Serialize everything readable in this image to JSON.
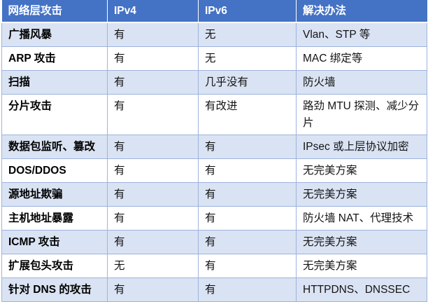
{
  "table": {
    "columns": [
      {
        "key": "attack",
        "label": "网络层攻击"
      },
      {
        "key": "ipv4",
        "label": "IPv4"
      },
      {
        "key": "ipv6",
        "label": "IPv6"
      },
      {
        "key": "solution",
        "label": "解决办法"
      }
    ],
    "rows": [
      {
        "attack": "广播风暴",
        "ipv4": "有",
        "ipv6": "无",
        "solution": "Vlan、STP 等"
      },
      {
        "attack": "ARP 攻击",
        "ipv4": "有",
        "ipv6": "无",
        "solution": "MAC 绑定等"
      },
      {
        "attack": "扫描",
        "ipv4": "有",
        "ipv6": "几乎没有",
        "solution": "防火墙"
      },
      {
        "attack": "分片攻击",
        "ipv4": "有",
        "ipv6": "有改进",
        "solution": "路劲 MTU 探测、减少分片"
      },
      {
        "attack": "数据包监听、篡改",
        "ipv4": "有",
        "ipv6": "有",
        "solution": "IPsec 或上层协议加密"
      },
      {
        "attack": "DOS/DDOS",
        "ipv4": "有",
        "ipv6": "有",
        "solution": "无完美方案"
      },
      {
        "attack": "源地址欺骗",
        "ipv4": "有",
        "ipv6": "有",
        "solution": "无完美方案"
      },
      {
        "attack": "主机地址暴露",
        "ipv4": "有",
        "ipv6": "有",
        "solution": "防火墙 NAT、代理技术"
      },
      {
        "attack": "ICMP 攻击",
        "ipv4": "有",
        "ipv6": "有",
        "solution": "无完美方案"
      },
      {
        "attack": "扩展包头攻击",
        "ipv4": "无",
        "ipv6": "有",
        "solution": "无完美方案"
      },
      {
        "attack": "针对 DNS 的攻击",
        "ipv4": "有",
        "ipv6": "有",
        "solution": "HTTPDNS、DNSSEC"
      }
    ],
    "colors": {
      "header_bg": "#4472c4",
      "header_text": "#ffffff",
      "band_row_bg": "#dae3f3",
      "plain_row_bg": "#ffffff",
      "border": "#9db3dc",
      "body_text": "#141414"
    }
  }
}
